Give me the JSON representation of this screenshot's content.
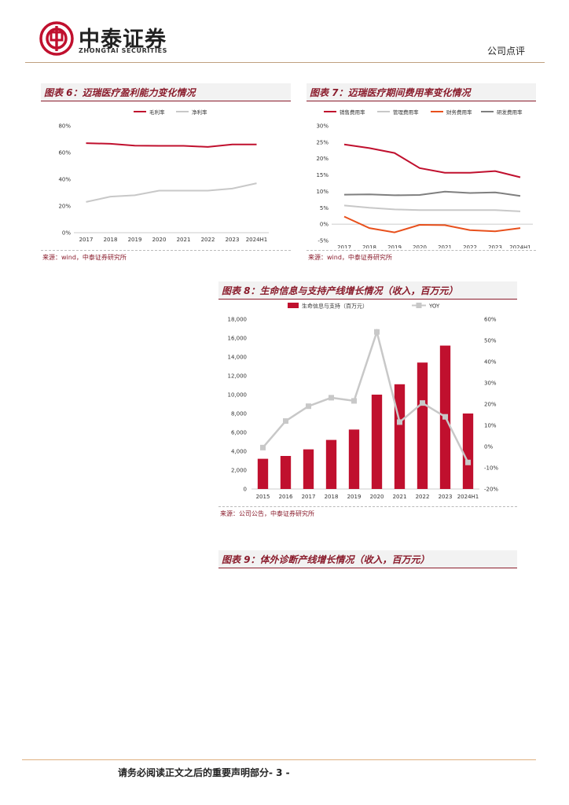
{
  "header": {
    "brand_cn": "中泰证券",
    "brand_en": "ZHONGTAI SECURITIES",
    "doc_type": "公司点评"
  },
  "figures": {
    "fig6": {
      "title": "图表 6：迈瑞医疗盈利能力变化情况",
      "source": "来源：wind，中泰证券研究所"
    },
    "fig7": {
      "title": "图表 7：迈瑞医疗期间费用率变化情况",
      "source": "来源：wind，中泰证券研究所"
    },
    "fig8": {
      "title": "图表 8：生命信息与支持产线增长情况（收入，百万元）",
      "source": "来源：公司公告，中泰证券研究所"
    },
    "fig9": {
      "title": "图表 9：体外诊断产线增长情况（收入，百万元）"
    }
  },
  "footer": {
    "text": "请务必阅读正文之后的重要声明部分- 3 -"
  },
  "colors": {
    "brand_red": "#c0102e",
    "title_red": "#8a1c2c",
    "grey_line": "#c8c8c8",
    "orange": "#e8501c",
    "dark_grey": "#7f7f7f"
  },
  "chart_data": [
    {
      "id": "fig6",
      "type": "line",
      "categories": [
        "2017",
        "2018",
        "2019",
        "2020",
        "2021",
        "2022",
        "2023",
        "2024H1"
      ],
      "series": [
        {
          "name": "毛利率",
          "color": "#c0102e",
          "values": [
            67,
            66.5,
            65.2,
            65,
            65,
            64.2,
            66,
            66
          ]
        },
        {
          "name": "净利率",
          "color": "#c8c8c8",
          "values": [
            23,
            27,
            28,
            31.5,
            31.5,
            31.5,
            33,
            37
          ]
        }
      ],
      "yticks": [
        "0%",
        "20%",
        "40%",
        "60%",
        "80%"
      ],
      "ylim": [
        0,
        80
      ]
    },
    {
      "id": "fig7",
      "type": "line",
      "categories": [
        "2017",
        "2018",
        "2019",
        "2020",
        "2021",
        "2022",
        "2023",
        "2024H1"
      ],
      "series": [
        {
          "name": "销售费用率",
          "color": "#c0102e",
          "values": [
            24.3,
            23.2,
            21.7,
            17.1,
            15.7,
            15.7,
            16.2,
            14.3
          ]
        },
        {
          "name": "管理费用率",
          "color": "#c8c8c8",
          "values": [
            5.7,
            5,
            4.5,
            4.3,
            4.3,
            4.3,
            4.3,
            3.9
          ]
        },
        {
          "name": "财务费用率",
          "color": "#e8501c",
          "values": [
            2.3,
            -1.2,
            -2.5,
            -0.2,
            -0.3,
            -1.8,
            -2.2,
            -1.2
          ]
        },
        {
          "name": "研发费用率",
          "color": "#7f7f7f",
          "values": [
            9,
            9.1,
            8.8,
            8.9,
            9.9,
            9.5,
            9.7,
            8.6
          ]
        }
      ],
      "yticks": [
        "-5%",
        "0%",
        "5%",
        "10%",
        "15%",
        "20%",
        "25%",
        "30%"
      ],
      "ylim": [
        -5,
        30
      ]
    },
    {
      "id": "fig8",
      "type": "bar",
      "categories": [
        "2015",
        "2016",
        "2017",
        "2018",
        "2019",
        "2020",
        "2021",
        "2022",
        "2023",
        "2024H1"
      ],
      "series": [
        {
          "name": "生命信息与支持（百万元）",
          "color": "#c0102e",
          "axis": "left",
          "values": [
            3200,
            3500,
            4200,
            5200,
            6300,
            10000,
            11100,
            13400,
            15200,
            8000
          ]
        },
        {
          "name": "YOY",
          "color": "#c8c8c8",
          "axis": "right",
          "values": [
            -0.5,
            12,
            19,
            23,
            21.5,
            54,
            11.5,
            20.5,
            14,
            -7.5
          ]
        }
      ],
      "yticks_left": [
        "0",
        "2,000",
        "4,000",
        "6,000",
        "8,000",
        "10,000",
        "12,000",
        "14,000",
        "16,000",
        "18,000"
      ],
      "yticks_right": [
        "-20%",
        "-10%",
        "0%",
        "10%",
        "20%",
        "30%",
        "40%",
        "50%",
        "60%"
      ],
      "ylim_left": [
        0,
        18000
      ],
      "ylim_right": [
        -20,
        60
      ]
    }
  ]
}
